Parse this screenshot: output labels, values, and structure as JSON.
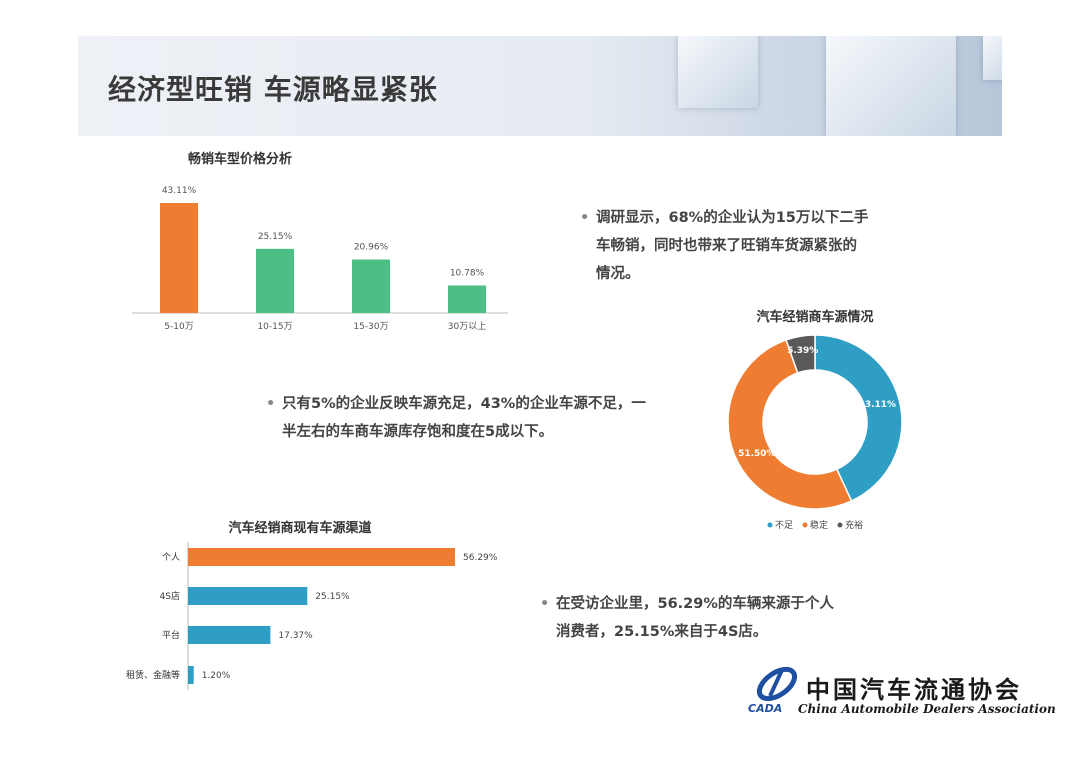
{
  "header": {
    "title": "经济型旺销 车源略显紧张"
  },
  "bullets": [
    {
      "lines": [
        "调研显示，68%的企业认为15万以下二手",
        "车畅销，同时也带来了旺销车货源紧张的",
        "情况。"
      ]
    },
    {
      "lines": [
        "只有5%的企业反映车源充足，43%的企业车源不足，一",
        "半左右的车商车源库存饱和度在5成以下。"
      ]
    },
    {
      "lines": [
        "在受访企业里，56.29%的车辆来源于个人",
        "消费者，25.15%来自于4S店。"
      ]
    }
  ],
  "logo": {
    "cn": "中国汽车流通协会",
    "en": "China Automobile Dealers Association",
    "abbr": "CADA"
  },
  "colors": {
    "orange": "#ef7d31",
    "green": "#4dbf84",
    "blue": "#2e9ec4",
    "gray": "#595959"
  },
  "chart_data": [
    {
      "type": "bar",
      "title": "畅销车型价格分析",
      "categories": [
        "5-10万",
        "10-15万",
        "15-30万",
        "30万以上"
      ],
      "values": [
        43.11,
        25.15,
        20.96,
        10.78
      ],
      "labels": [
        "43.11%",
        "25.15%",
        "20.96%",
        "10.78%"
      ],
      "bar_colors": [
        "#ef7d31",
        "#4dbf84",
        "#4dbf84",
        "#4dbf84"
      ],
      "ylim": [
        0,
        50
      ]
    },
    {
      "type": "pie",
      "title": "汽车经销商车源情况",
      "slices": [
        {
          "name": "不足",
          "value": 43.11,
          "label": "43.11%",
          "color": "#2e9ec4"
        },
        {
          "name": "稳定",
          "value": 51.5,
          "label": "51.50%",
          "color": "#ef7d31"
        },
        {
          "name": "充裕",
          "value": 5.39,
          "label": "5.39%",
          "color": "#595959"
        }
      ],
      "legend": "bottom"
    },
    {
      "type": "bar",
      "orientation": "horizontal",
      "title": "汽车经销商现有车源渠道",
      "categories": [
        "个人",
        "4S店",
        "平台",
        "租赁、金融等"
      ],
      "values": [
        56.29,
        25.15,
        17.37,
        1.2
      ],
      "labels": [
        "56.29%",
        "25.15%",
        "17.37%",
        "1.20%"
      ],
      "bar_colors": [
        "#ef7d31",
        "#2e9ec4",
        "#2e9ec4",
        "#2e9ec4"
      ],
      "xlim": [
        0,
        60
      ]
    }
  ]
}
